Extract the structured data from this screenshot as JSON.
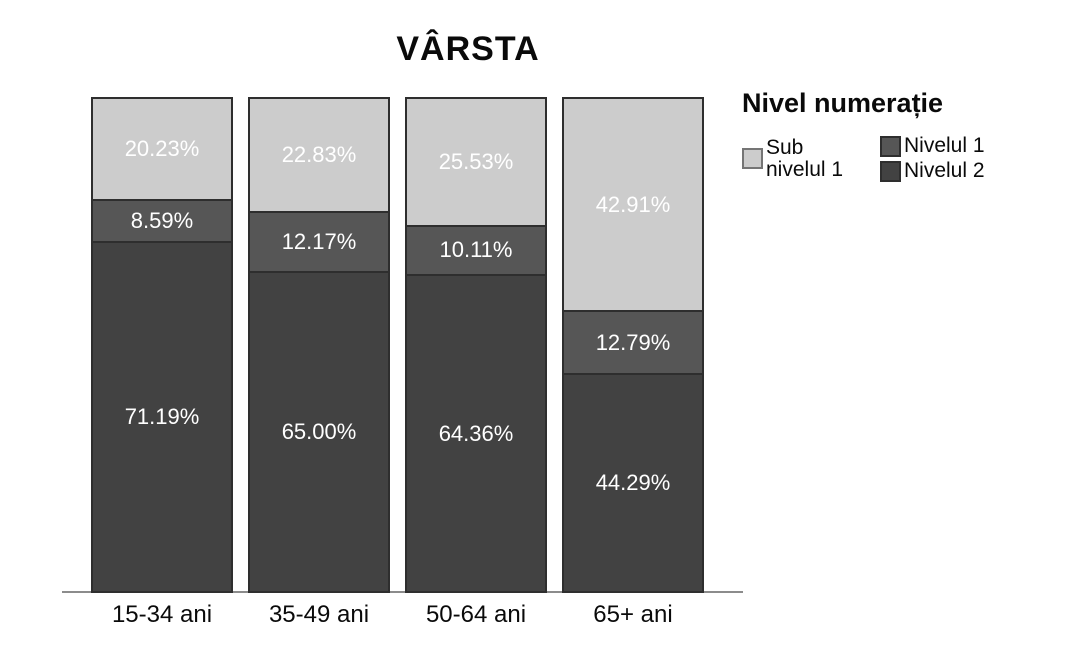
{
  "title": "VÂRSTA",
  "legend": {
    "title": "Nivel numerație",
    "items": [
      {
        "label": "Sub nivelul 1",
        "color": "#cccccc"
      },
      {
        "label": "Nivelul 1",
        "color": "#565656"
      },
      {
        "label": "Nivelul 2",
        "color": "#424242"
      }
    ]
  },
  "axis": {
    "line_color": "#8c8c8c"
  },
  "chart_data": {
    "type": "bar",
    "variant": "100-percent-stacked-column",
    "title": "VÂRSTA",
    "legend_title": "Nivel numerație",
    "legend_position": "top-right",
    "grid": false,
    "xlabel": "",
    "ylabel": "",
    "ylim": [
      0,
      100
    ],
    "categories": [
      "15-34 ani",
      "35-49 ani",
      "50-64 ani",
      "65+ ani"
    ],
    "stack_order_top_to_bottom": [
      "Sub nivelul 1",
      "Nivelul 1",
      "Nivelul 2"
    ],
    "data_label_format": "0.00%",
    "data_label_color": "#ffffff",
    "series": [
      {
        "name": "Sub nivelul 1",
        "color": "#cccccc",
        "values": [
          20.23,
          22.83,
          25.53,
          42.91
        ]
      },
      {
        "name": "Nivelul 1",
        "color": "#565656",
        "values": [
          8.59,
          12.17,
          10.11,
          12.79
        ]
      },
      {
        "name": "Nivelul 2",
        "color": "#424242",
        "values": [
          71.19,
          65.0,
          64.36,
          44.29
        ]
      }
    ]
  }
}
